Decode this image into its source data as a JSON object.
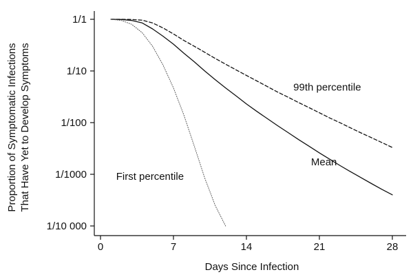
{
  "chart_data": {
    "type": "line",
    "title": "",
    "xlabel": "Days Since Infection",
    "ylabel_lines": [
      "Proportion of Symptomatic Infections",
      "That Have Yet to Develop Symptoms"
    ],
    "xlim": [
      0,
      28
    ],
    "ylim": [
      0.0001,
      1
    ],
    "y_scale": "log",
    "x_ticks": [
      0,
      7,
      14,
      21,
      28
    ],
    "x_tick_labels": [
      "0",
      "7",
      "14",
      "21",
      "28"
    ],
    "y_ticks": [
      1,
      0.1,
      0.01,
      0.001,
      0.0001
    ],
    "y_tick_labels": [
      "1/1",
      "1/10",
      "1/100",
      "1/1000",
      "1/10 000"
    ],
    "grid": false,
    "legend": "none",
    "series": [
      {
        "name": "Mean",
        "style": "solid",
        "color": "#111111",
        "x": [
          1,
          2,
          3,
          4,
          5,
          6,
          7,
          8,
          9,
          10,
          11,
          12,
          13,
          14,
          15,
          16,
          17,
          18,
          19,
          20,
          21,
          22,
          23,
          24,
          25,
          26,
          27,
          28
        ],
        "y": [
          1.0,
          0.99,
          0.95,
          0.85,
          0.65,
          0.47,
          0.33,
          0.22,
          0.15,
          0.1,
          0.068,
          0.047,
          0.033,
          0.023,
          0.0165,
          0.012,
          0.0087,
          0.0064,
          0.0047,
          0.0035,
          0.0026,
          0.00195,
          0.00147,
          0.00112,
          0.00086,
          0.00066,
          0.00051,
          0.0004
        ]
      },
      {
        "name": "99th percentile",
        "style": "dashed",
        "color": "#111111",
        "x": [
          1,
          2,
          3,
          4,
          5,
          6,
          7,
          8,
          9,
          10,
          11,
          12,
          13,
          14,
          15,
          16,
          17,
          18,
          19,
          20,
          21,
          22,
          23,
          24,
          25,
          26,
          27,
          28
        ],
        "y": [
          1.0,
          1.0,
          0.99,
          0.96,
          0.85,
          0.68,
          0.52,
          0.39,
          0.3,
          0.23,
          0.175,
          0.135,
          0.105,
          0.082,
          0.064,
          0.05,
          0.039,
          0.031,
          0.0245,
          0.0195,
          0.0155,
          0.0123,
          0.0099,
          0.0079,
          0.0063,
          0.0051,
          0.0041,
          0.0033
        ]
      },
      {
        "name": "First percentile",
        "style": "dotted",
        "color": "#555555",
        "x": [
          1,
          2,
          3,
          4,
          5,
          6,
          7,
          8,
          9,
          10,
          11,
          12
        ],
        "y": [
          1.0,
          0.95,
          0.8,
          0.55,
          0.3,
          0.13,
          0.047,
          0.014,
          0.0035,
          0.00085,
          0.00025,
          0.0001
        ]
      }
    ],
    "annotations": [
      {
        "text": "99th percentile",
        "x": 18.5,
        "y": 0.042
      },
      {
        "text": "Mean",
        "x": 20.2,
        "y": 0.0015
      },
      {
        "text": "First percentile",
        "x": 1.5,
        "y": 0.00078
      }
    ]
  }
}
